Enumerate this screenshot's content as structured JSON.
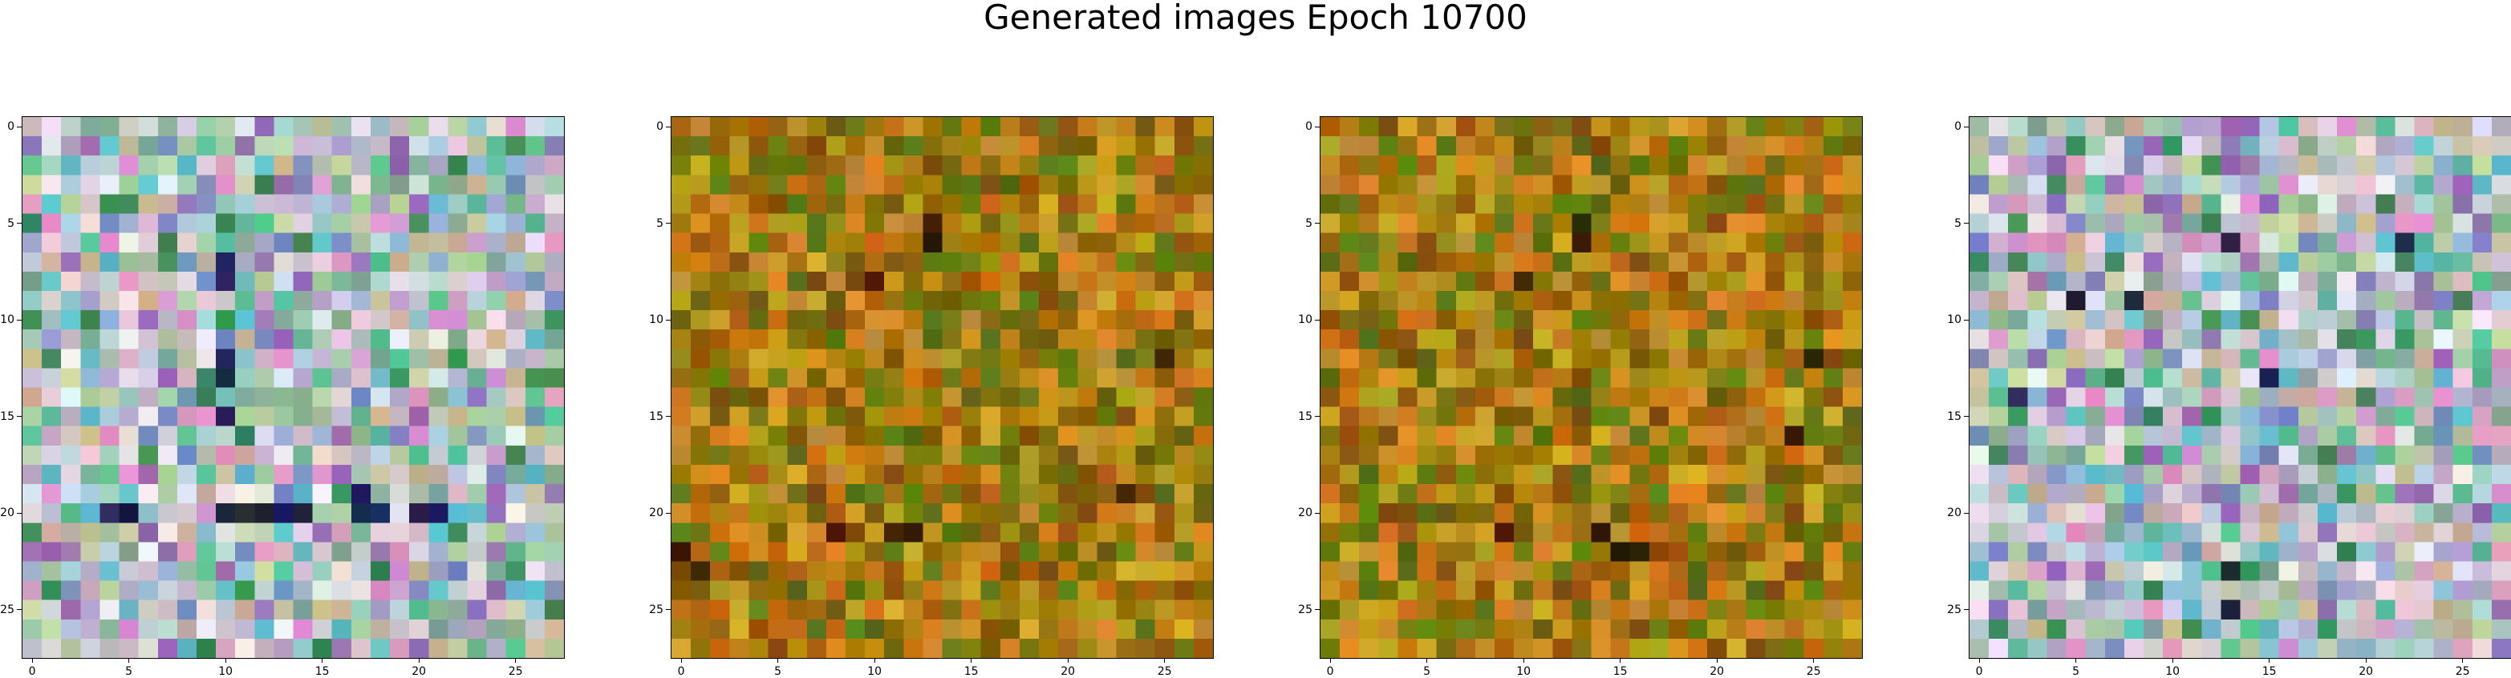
{
  "title": "Generated images Epoch 10700",
  "chart_data": [
    {
      "type": "heatmap",
      "palette": "pastel",
      "seed": 11,
      "grid": [
        28,
        28
      ],
      "xlim": [
        -0.5,
        27.5
      ],
      "ylim": [
        27.5,
        -0.5
      ],
      "xticks": [
        0,
        5,
        10,
        15,
        20,
        25
      ],
      "yticks": [
        0,
        5,
        10,
        15,
        20,
        25
      ],
      "grid_lines": false,
      "dark_cells": [
        [
          20,
          4
        ],
        [
          20,
          5
        ],
        [
          20,
          10
        ],
        [
          20,
          11
        ],
        [
          20,
          12
        ],
        [
          20,
          13
        ],
        [
          20,
          14
        ],
        [
          20,
          17
        ],
        [
          20,
          18
        ],
        [
          20,
          20
        ],
        [
          20,
          21
        ],
        [
          7,
          10
        ],
        [
          8,
          10
        ],
        [
          12,
          10
        ],
        [
          13,
          10
        ],
        [
          15,
          10
        ],
        [
          19,
          17
        ]
      ]
    },
    {
      "type": "heatmap",
      "palette": "warm",
      "seed": 23,
      "grid": [
        28,
        28
      ],
      "xlim": [
        -0.5,
        27.5
      ],
      "ylim": [
        27.5,
        -0.5
      ],
      "xticks": [
        0,
        5,
        10,
        15,
        20,
        25
      ],
      "yticks": [
        0,
        5,
        10,
        15,
        20,
        25
      ],
      "grid_lines": false,
      "dark_cells": [
        [
          5,
          13
        ],
        [
          6,
          13
        ],
        [
          8,
          10
        ],
        [
          12,
          25
        ],
        [
          21,
          8
        ],
        [
          21,
          11
        ],
        [
          21,
          12
        ],
        [
          22,
          0
        ],
        [
          23,
          1
        ],
        [
          19,
          23
        ]
      ]
    },
    {
      "type": "heatmap",
      "palette": "warm",
      "seed": 37,
      "grid": [
        28,
        28
      ],
      "xlim": [
        -0.5,
        27.5
      ],
      "ylim": [
        27.5,
        -0.5
      ],
      "xticks": [
        0,
        5,
        10,
        15,
        20,
        25
      ],
      "yticks": [
        0,
        5,
        10,
        15,
        20,
        25
      ],
      "grid_lines": false,
      "dark_cells": [
        [
          5,
          13
        ],
        [
          6,
          13
        ],
        [
          8,
          10
        ],
        [
          12,
          25
        ],
        [
          16,
          24
        ],
        [
          21,
          9
        ],
        [
          21,
          14
        ],
        [
          22,
          15
        ],
        [
          22,
          16
        ]
      ]
    },
    {
      "type": "heatmap",
      "palette": "pastel",
      "seed": 53,
      "grid": [
        28,
        28
      ],
      "xlim": [
        -0.5,
        27.5
      ],
      "ylim": [
        27.5,
        -0.5
      ],
      "xticks": [
        0,
        5,
        10,
        15,
        20,
        25
      ],
      "yticks": [
        0,
        5,
        10,
        15,
        20,
        25
      ],
      "grid_lines": false,
      "dark_cells": [
        [
          6,
          13
        ],
        [
          9,
          5
        ],
        [
          9,
          8
        ],
        [
          13,
          15
        ],
        [
          14,
          2
        ],
        [
          23,
          13
        ],
        [
          25,
          13
        ],
        [
          6,
          22
        ]
      ]
    }
  ]
}
